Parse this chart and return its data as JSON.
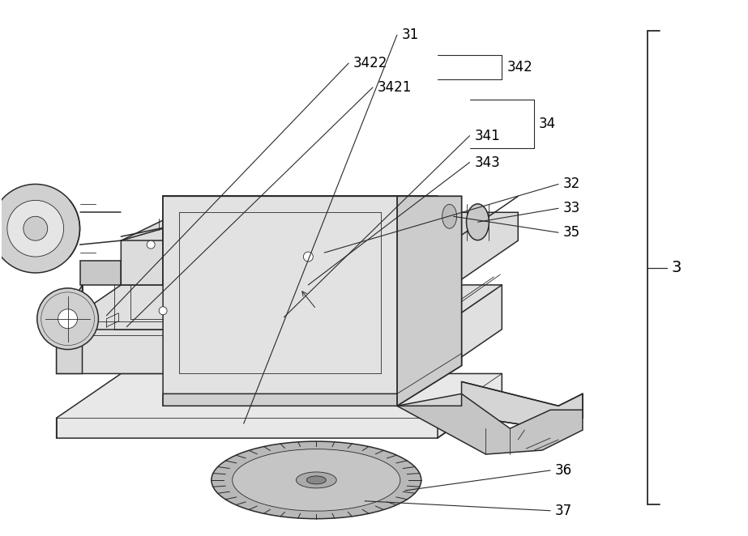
{
  "bg_color": "#ffffff",
  "line_color": "#2a2a2a",
  "label_color": "#000000",
  "fig_width": 9.23,
  "fig_height": 6.62,
  "font_size": 12,
  "lw_main": 1.1,
  "lw_thin": 0.6,
  "lw_thick": 1.4
}
